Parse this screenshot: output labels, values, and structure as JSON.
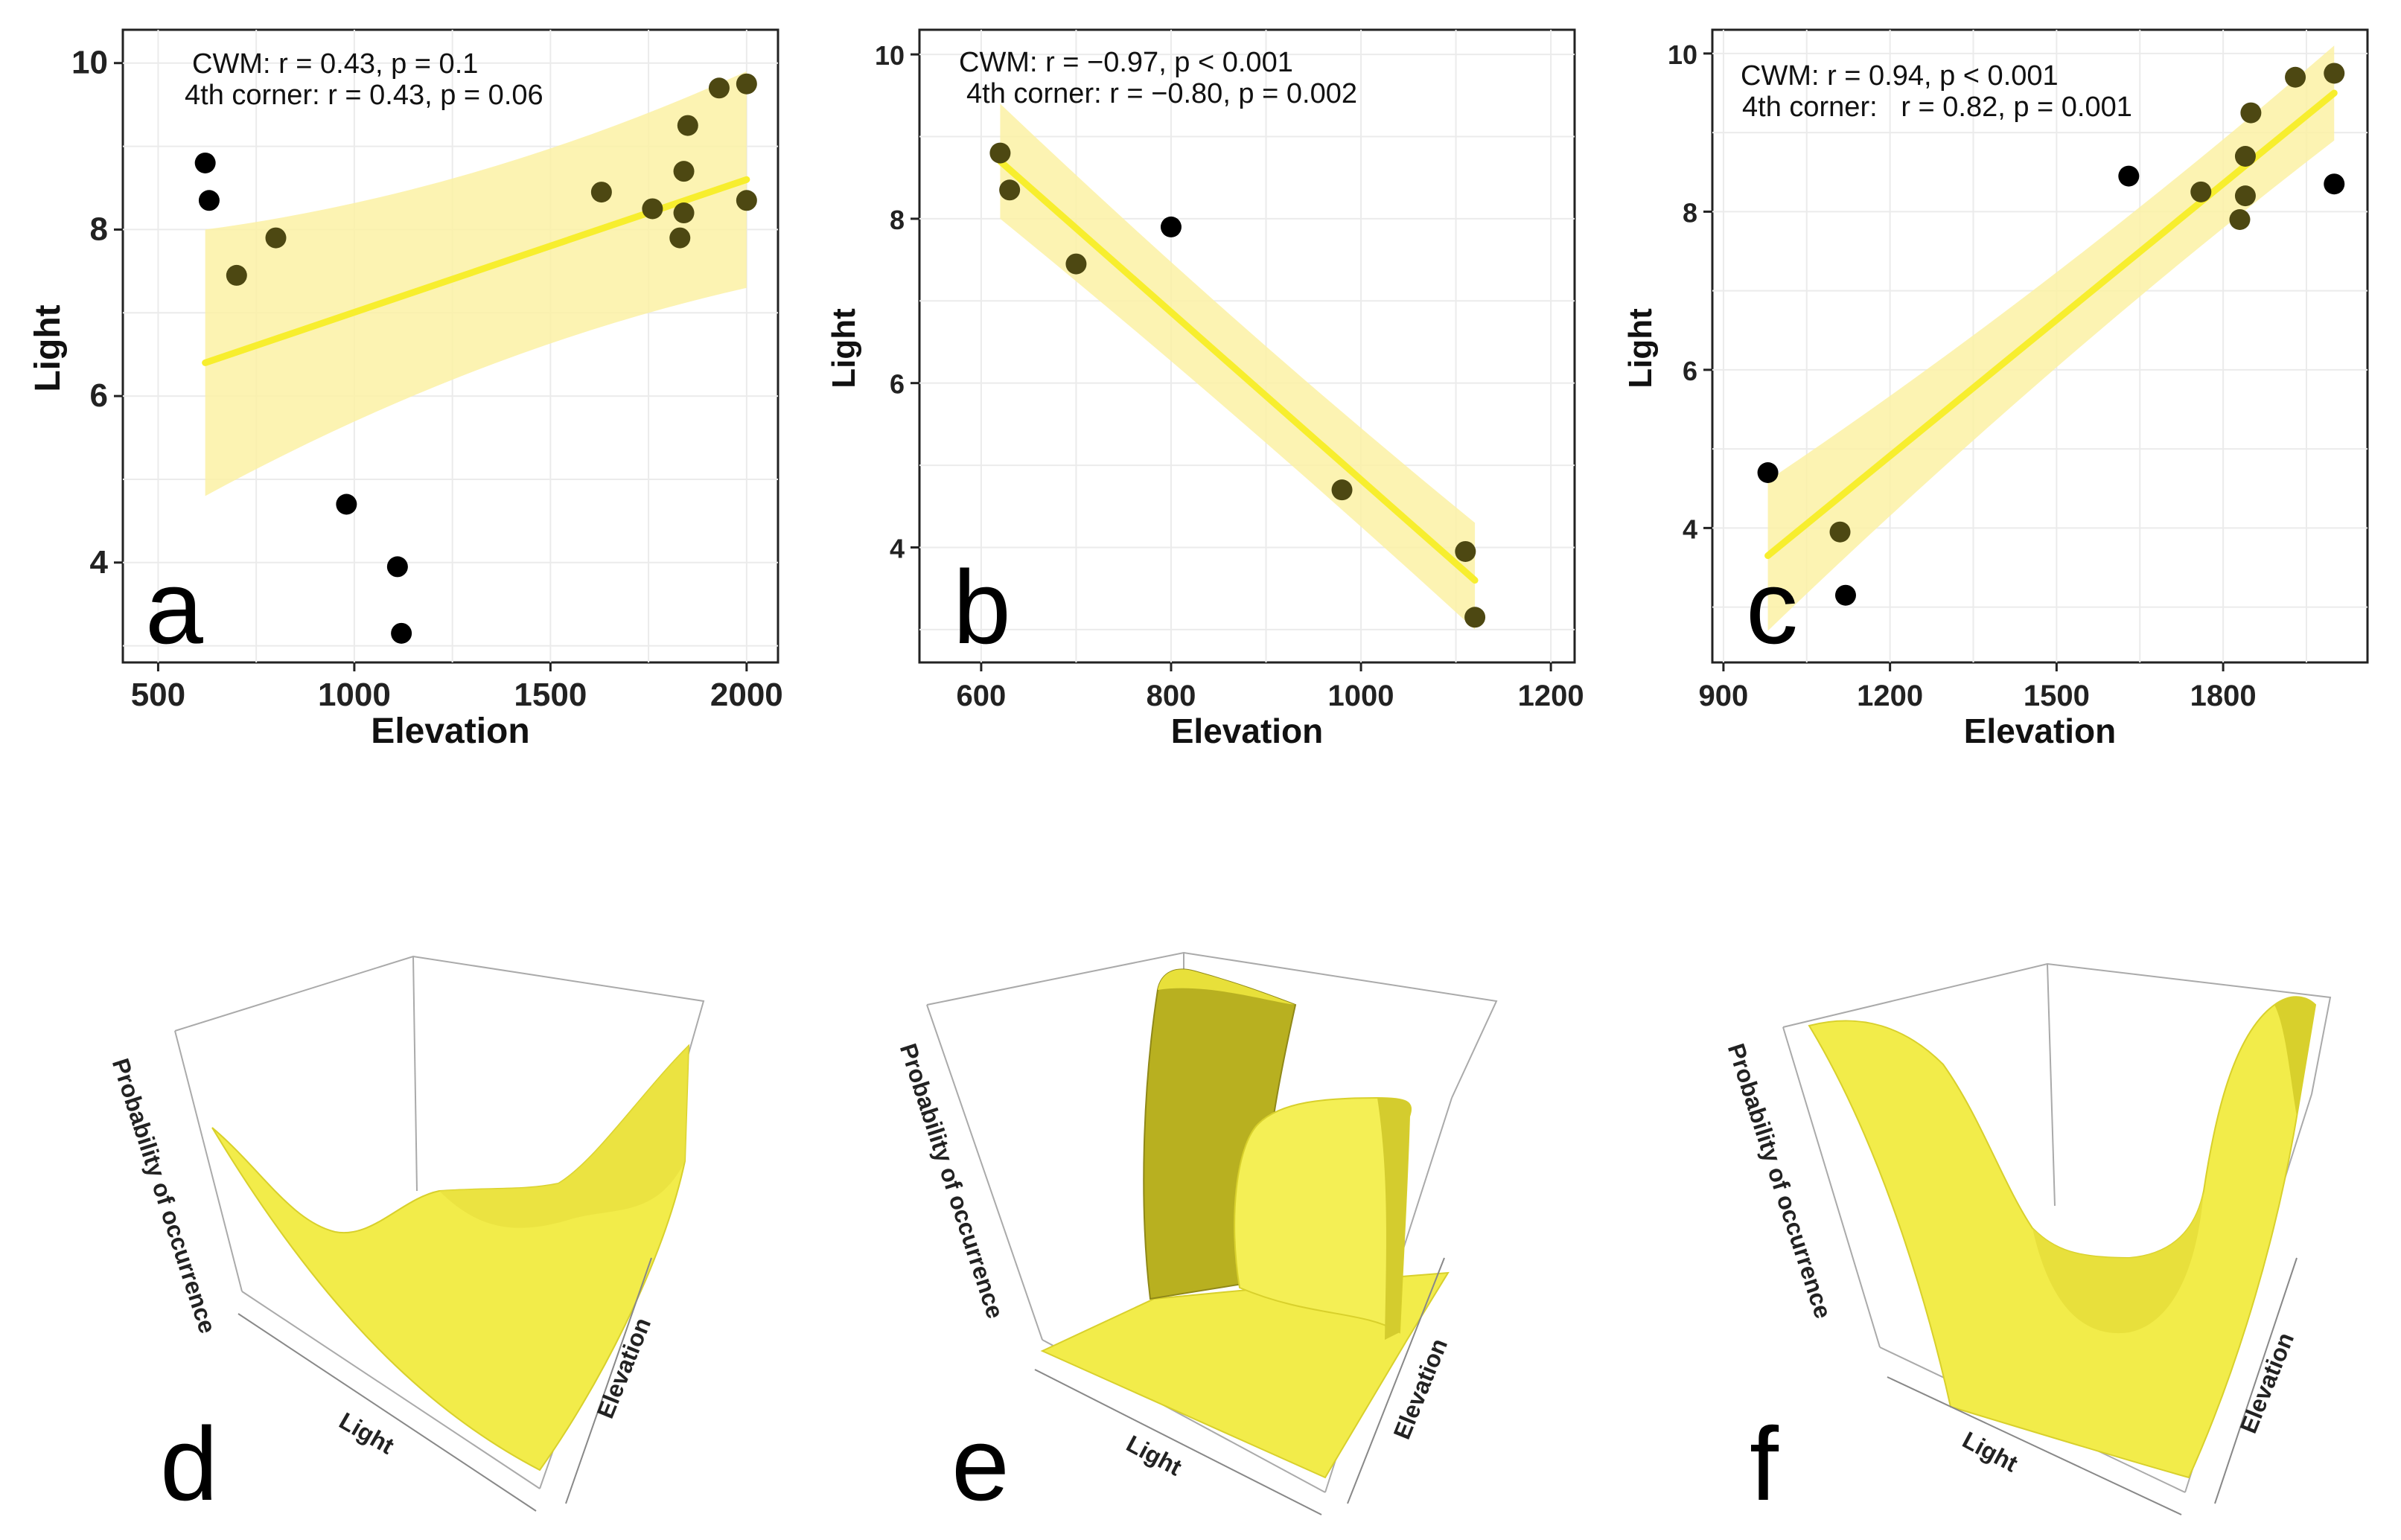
{
  "colors": {
    "yellow_line": "#f7ee2e",
    "yellow_band": "#fbf1a4",
    "surface": "#f1ec48",
    "surface_dark": "#c4bc24",
    "point": "#000000",
    "grid": "#ebebeb",
    "axis": "#222222"
  },
  "chart_data": [
    {
      "panel": "a",
      "type": "scatter",
      "xlabel": "Elevation",
      "ylabel": "Light",
      "xlim": [
        410,
        2080
      ],
      "ylim": [
        2.8,
        10.4
      ],
      "xticks": [
        500,
        1000,
        1500,
        2000
      ],
      "yticks": [
        4,
        6,
        8,
        10
      ],
      "annotations": [
        "CWM: r = 0.43, p = 0.1",
        "4th corner: r = 0.43, p = 0.06"
      ],
      "points": [
        {
          "x": 620,
          "y": 8.8
        },
        {
          "x": 630,
          "y": 8.35
        },
        {
          "x": 700,
          "y": 7.45
        },
        {
          "x": 800,
          "y": 7.9
        },
        {
          "x": 980,
          "y": 4.7
        },
        {
          "x": 1110,
          "y": 3.95
        },
        {
          "x": 1120,
          "y": 3.15
        },
        {
          "x": 1630,
          "y": 8.45
        },
        {
          "x": 1760,
          "y": 8.25
        },
        {
          "x": 1830,
          "y": 7.9
        },
        {
          "x": 1840,
          "y": 8.7
        },
        {
          "x": 1840,
          "y": 8.2
        },
        {
          "x": 1850,
          "y": 9.25
        },
        {
          "x": 1930,
          "y": 9.7
        },
        {
          "x": 2000,
          "y": 9.75
        },
        {
          "x": 2000,
          "y": 8.35
        }
      ],
      "fit": {
        "x0": 620,
        "y0": 6.4,
        "x1": 2000,
        "y1": 8.6
      },
      "band": {
        "lower": [
          4.8,
          7.3
        ],
        "upper": [
          8.0,
          9.9
        ]
      }
    },
    {
      "panel": "b",
      "type": "scatter",
      "xlabel": "Elevation",
      "ylabel": "Light",
      "xlim": [
        535,
        1225
      ],
      "ylim": [
        2.6,
        10.3
      ],
      "xticks": [
        600,
        800,
        1000,
        1200
      ],
      "yticks": [
        4,
        6,
        8,
        10
      ],
      "annotations": [
        "CWM: r = −0.97, p < 0.001",
        "4th corner: r = −0.80, p = 0.002"
      ],
      "points": [
        {
          "x": 620,
          "y": 8.8
        },
        {
          "x": 630,
          "y": 8.35
        },
        {
          "x": 700,
          "y": 7.45
        },
        {
          "x": 800,
          "y": 7.9
        },
        {
          "x": 980,
          "y": 4.7
        },
        {
          "x": 1110,
          "y": 3.95
        },
        {
          "x": 1120,
          "y": 3.15
        }
      ],
      "fit": {
        "x0": 620,
        "y0": 8.7,
        "x1": 1120,
        "y1": 3.6
      },
      "band": {
        "lower": [
          8.0,
          3.0
        ],
        "upper": [
          9.4,
          4.3
        ]
      }
    },
    {
      "panel": "c",
      "type": "scatter",
      "xlabel": "Elevation",
      "ylabel": "Light",
      "xlim": [
        880,
        2060
      ],
      "ylim": [
        2.3,
        10.3
      ],
      "xticks": [
        900,
        1200,
        1500,
        1800
      ],
      "yticks": [
        4,
        6,
        8,
        10
      ],
      "annotations": [
        "CWM: r = 0.94, p < 0.001",
        "4th corner:   r = 0.82, p = 0.001"
      ],
      "points": [
        {
          "x": 980,
          "y": 4.7
        },
        {
          "x": 1110,
          "y": 3.95
        },
        {
          "x": 1120,
          "y": 3.15
        },
        {
          "x": 1630,
          "y": 8.45
        },
        {
          "x": 1760,
          "y": 8.25
        },
        {
          "x": 1830,
          "y": 7.9
        },
        {
          "x": 1840,
          "y": 8.7
        },
        {
          "x": 1840,
          "y": 8.2
        },
        {
          "x": 1850,
          "y": 9.25
        },
        {
          "x": 1930,
          "y": 9.7
        },
        {
          "x": 2000,
          "y": 9.75
        },
        {
          "x": 2000,
          "y": 8.35
        }
      ],
      "fit": {
        "x0": 980,
        "y0": 3.65,
        "x1": 2000,
        "y1": 9.5
      },
      "band": {
        "lower": [
          2.7,
          8.9
        ],
        "upper": [
          4.6,
          10.1
        ]
      }
    },
    {
      "panel": "d",
      "type": "surface",
      "zlabel": "Probability of occurrence",
      "xlabel": "Light",
      "ylabel": "Elevation"
    },
    {
      "panel": "e",
      "type": "surface",
      "zlabel": "Probability of occurrence",
      "xlabel": "Light",
      "ylabel": "Elevation"
    },
    {
      "panel": "f",
      "type": "surface",
      "zlabel": "Probability of occurrence",
      "xlabel": "Light",
      "ylabel": "Elevation"
    }
  ]
}
